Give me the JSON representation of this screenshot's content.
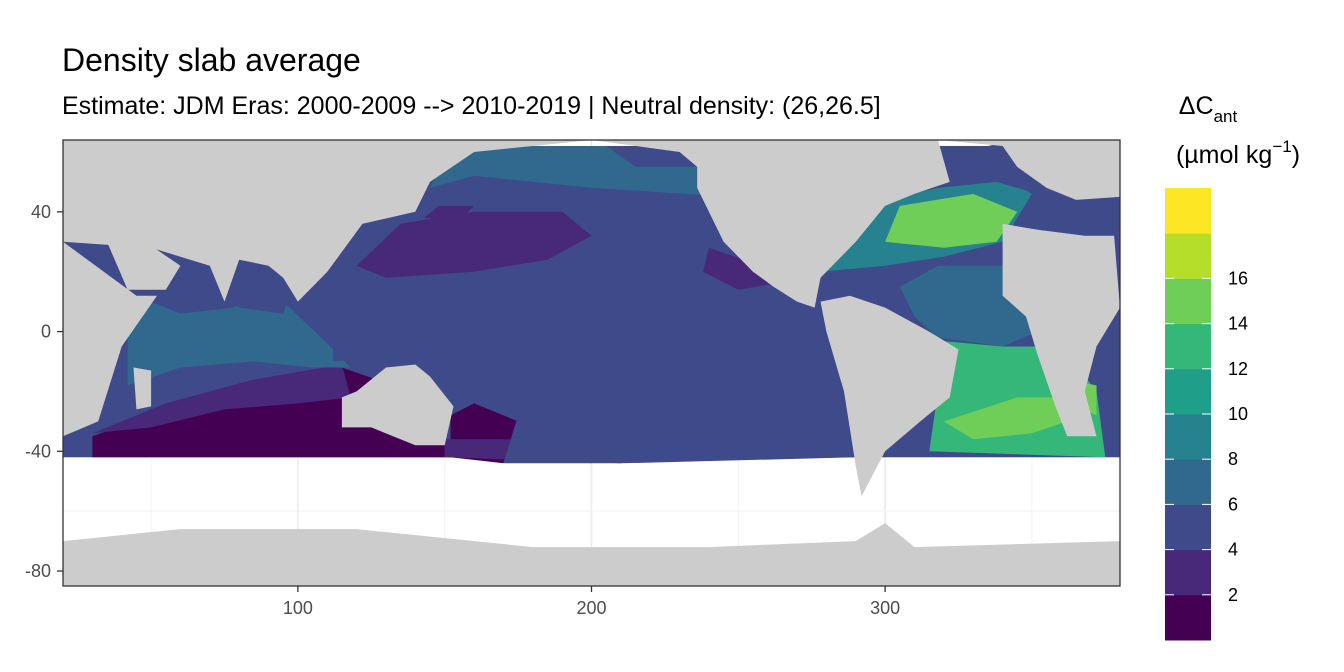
{
  "chart_data": {
    "type": "heatmap",
    "title": "Density slab average",
    "subtitle": "Estimate: JDM Eras: 2000-2009 --> 2010-2019 | Neutral density: (26,26.5]",
    "xlim": [
      20,
      380
    ],
    "ylim": [
      -85,
      64
    ],
    "x_ticks": [
      100,
      200,
      300
    ],
    "y_ticks": [
      40,
      0,
      -40,
      -80
    ],
    "x_tick_labels": [
      "100",
      "200",
      "300"
    ],
    "y_tick_labels": [
      "40",
      "0",
      "-40",
      "-80"
    ],
    "grid": true,
    "legend": {
      "position": "right",
      "title_main": "ΔC",
      "title_sub": "ant",
      "units_prefix": "(µmol kg",
      "units_sup": "−1",
      "units_suffix": ")",
      "tick_labels": [
        "2",
        "4",
        "6",
        "8",
        "10",
        "12",
        "14",
        "16"
      ],
      "breaks": [
        0,
        2,
        4,
        6,
        8,
        10,
        12,
        14,
        16,
        18
      ],
      "colors": [
        "#440154",
        "#482878",
        "#3e4a89",
        "#31688e",
        "#26828e",
        "#1f9e89",
        "#35b779",
        "#6ece58",
        "#b5de2b",
        "#fde725"
      ]
    },
    "regions": [
      {
        "name": "southern indian low",
        "value": 1,
        "poly": [
          [
            30,
            -42
          ],
          [
            150,
            -42
          ],
          [
            150,
            -24
          ],
          [
            115,
            -12
          ],
          [
            80,
            -18
          ],
          [
            50,
            -28
          ],
          [
            30,
            -35
          ]
        ]
      },
      {
        "name": "south indian",
        "value": 3,
        "poly": [
          [
            30,
            -34
          ],
          [
            55,
            -24
          ],
          [
            85,
            -16
          ],
          [
            115,
            -11
          ],
          [
            118,
            -22
          ],
          [
            100,
            -24
          ],
          [
            75,
            -26
          ],
          [
            50,
            -32
          ]
        ]
      },
      {
        "name": "mid indian",
        "value": 7,
        "poly": [
          [
            42,
            -18
          ],
          [
            42,
            6
          ],
          [
            52,
            10
          ],
          [
            75,
            8
          ],
          [
            95,
            10
          ],
          [
            110,
            -4
          ],
          [
            118,
            -12
          ],
          [
            105,
            -12
          ],
          [
            85,
            -10
          ],
          [
            60,
            -12
          ]
        ]
      },
      {
        "name": "arabian sea",
        "value": 5,
        "poly": [
          [
            45,
            12
          ],
          [
            55,
            24
          ],
          [
            65,
            25
          ],
          [
            75,
            12
          ],
          [
            78,
            8
          ],
          [
            60,
            6
          ]
        ]
      },
      {
        "name": "bay of bengal",
        "value": 4,
        "poly": [
          [
            80,
            8
          ],
          [
            82,
            20
          ],
          [
            92,
            22
          ],
          [
            98,
            14
          ],
          [
            95,
            6
          ]
        ]
      },
      {
        "name": "tasman",
        "value": 1,
        "poly": [
          [
            152,
            -42
          ],
          [
            170,
            -44
          ],
          [
            175,
            -30
          ],
          [
            160,
            -24
          ],
          [
            152,
            -28
          ]
        ]
      },
      {
        "name": "s pacific band",
        "value": 2,
        "poly": [
          [
            150,
            -42
          ],
          [
            210,
            -44
          ],
          [
            210,
            -38
          ],
          [
            180,
            -36
          ],
          [
            150,
            -36
          ]
        ]
      },
      {
        "name": "pacific main",
        "value": 5,
        "poly": [
          [
            112,
            -10
          ],
          [
            112,
            35
          ],
          [
            145,
            48
          ],
          [
            160,
            55
          ],
          [
            200,
            58
          ],
          [
            235,
            58
          ],
          [
            250,
            40
          ],
          [
            255,
            22
          ],
          [
            268,
            12
          ],
          [
            280,
            0
          ],
          [
            285,
            -20
          ],
          [
            290,
            -42
          ],
          [
            210,
            -44
          ],
          [
            170,
            -44
          ],
          [
            175,
            -28
          ],
          [
            160,
            -18
          ],
          [
            140,
            -8
          ]
        ]
      },
      {
        "name": "subpolar n pacific",
        "value": 7,
        "poly": [
          [
            145,
            48
          ],
          [
            150,
            58
          ],
          [
            160,
            62
          ],
          [
            205,
            62
          ],
          [
            215,
            55
          ],
          [
            240,
            55
          ],
          [
            248,
            45
          ],
          [
            200,
            48
          ],
          [
            160,
            52
          ]
        ]
      },
      {
        "name": "subtropical gyre low",
        "value": 3,
        "poly": [
          [
            120,
            22
          ],
          [
            135,
            36
          ],
          [
            160,
            40
          ],
          [
            190,
            40
          ],
          [
            200,
            32
          ],
          [
            185,
            24
          ],
          [
            160,
            20
          ],
          [
            130,
            18
          ]
        ]
      },
      {
        "name": "kuroshio low",
        "value": 2,
        "poly": [
          [
            143,
            38
          ],
          [
            148,
            42
          ],
          [
            160,
            42
          ],
          [
            155,
            37
          ]
        ]
      },
      {
        "name": "east pacific low",
        "value": 3,
        "poly": [
          [
            240,
            28
          ],
          [
            258,
            22
          ],
          [
            262,
            16
          ],
          [
            250,
            14
          ],
          [
            238,
            20
          ]
        ]
      },
      {
        "name": "atlantic nw",
        "value": 9,
        "poly": [
          [
            278,
            20
          ],
          [
            285,
            38
          ],
          [
            300,
            44
          ],
          [
            318,
            48
          ],
          [
            340,
            52
          ],
          [
            350,
            46
          ],
          [
            340,
            30
          ],
          [
            320,
            25
          ],
          [
            300,
            22
          ]
        ]
      },
      {
        "name": "atlantic gyre",
        "value": 15,
        "poly": [
          [
            300,
            30
          ],
          [
            305,
            42
          ],
          [
            330,
            46
          ],
          [
            345,
            40
          ],
          [
            338,
            30
          ],
          [
            320,
            28
          ]
        ]
      },
      {
        "name": "north atlantic high lat",
        "value": 5,
        "poly": [
          [
            318,
            48
          ],
          [
            325,
            60
          ],
          [
            345,
            64
          ],
          [
            365,
            60
          ],
          [
            365,
            50
          ],
          [
            352,
            46
          ],
          [
            338,
            50
          ]
        ]
      },
      {
        "name": "eastern atlantic subtropics",
        "value": 5,
        "poly": [
          [
            340,
            10
          ],
          [
            340,
            30
          ],
          [
            350,
            32
          ],
          [
            352,
            20
          ],
          [
            345,
            10
          ]
        ]
      },
      {
        "name": "tropical atlantic",
        "value": 7,
        "poly": [
          [
            305,
            15
          ],
          [
            318,
            22
          ],
          [
            340,
            22
          ],
          [
            345,
            10
          ],
          [
            352,
            0
          ],
          [
            340,
            -5
          ],
          [
            318,
            -2
          ],
          [
            310,
            5
          ]
        ]
      },
      {
        "name": "s atlantic",
        "value": 12,
        "poly": [
          [
            315,
            -40
          ],
          [
            375,
            -42
          ],
          [
            372,
            -20
          ],
          [
            360,
            -5
          ],
          [
            340,
            -5
          ],
          [
            318,
            -3
          ],
          [
            318,
            -20
          ]
        ]
      },
      {
        "name": "s atlantic high",
        "value": 14,
        "poly": [
          [
            320,
            -30
          ],
          [
            330,
            -36
          ],
          [
            350,
            -34
          ],
          [
            368,
            -28
          ],
          [
            368,
            -22
          ],
          [
            345,
            -22
          ]
        ]
      },
      {
        "name": "benguela",
        "value": 15,
        "poly": [
          [
            358,
            -22
          ],
          [
            372,
            -28
          ],
          [
            372,
            -18
          ],
          [
            362,
            -16
          ]
        ]
      }
    ],
    "land": [
      {
        "name": "africa",
        "poly": [
          [
            340,
            36
          ],
          [
            352,
            34
          ],
          [
            368,
            32
          ],
          [
            378,
            32
          ],
          [
            380,
            8
          ],
          [
            372,
            -5
          ],
          [
            368,
            -20
          ],
          [
            372,
            -35
          ],
          [
            362,
            -35
          ],
          [
            358,
            -25
          ],
          [
            352,
            -8
          ],
          [
            348,
            5
          ],
          [
            340,
            12
          ]
        ]
      },
      {
        "name": "africa east",
        "poly": [
          [
            20,
            30
          ],
          [
            45,
            12
          ],
          [
            52,
            12
          ],
          [
            40,
            -5
          ],
          [
            32,
            -30
          ],
          [
            20,
            -35
          ]
        ]
      },
      {
        "name": "arabia",
        "poly": [
          [
            35,
            30
          ],
          [
            48,
            30
          ],
          [
            60,
            22
          ],
          [
            55,
            14
          ],
          [
            42,
            14
          ]
        ]
      },
      {
        "name": "eurasia",
        "poly": [
          [
            20,
            64
          ],
          [
            380,
            64
          ],
          [
            380,
            45
          ],
          [
            365,
            44
          ],
          [
            355,
            48
          ],
          [
            345,
            55
          ],
          [
            340,
            62
          ],
          [
            318,
            64
          ],
          [
            300,
            64
          ],
          [
            290,
            60
          ],
          [
            282,
            64
          ],
          [
            200,
            64
          ],
          [
            160,
            60
          ],
          [
            145,
            50
          ],
          [
            140,
            40
          ],
          [
            122,
            36
          ],
          [
            110,
            20
          ],
          [
            100,
            10
          ],
          [
            95,
            18
          ],
          [
            90,
            22
          ],
          [
            80,
            24
          ],
          [
            75,
            10
          ],
          [
            70,
            22
          ],
          [
            60,
            25
          ],
          [
            50,
            28
          ],
          [
            20,
            30
          ]
        ]
      },
      {
        "name": "north america",
        "poly": [
          [
            200,
            64
          ],
          [
            230,
            60
          ],
          [
            236,
            55
          ],
          [
            236,
            48
          ],
          [
            245,
            30
          ],
          [
            255,
            20
          ],
          [
            262,
            15
          ],
          [
            270,
            10
          ],
          [
            276,
            8
          ],
          [
            278,
            18
          ],
          [
            290,
            30
          ],
          [
            300,
            42
          ],
          [
            310,
            46
          ],
          [
            322,
            50
          ],
          [
            318,
            64
          ]
        ]
      },
      {
        "name": "south america",
        "poly": [
          [
            278,
            10
          ],
          [
            288,
            12
          ],
          [
            300,
            8
          ],
          [
            315,
            0
          ],
          [
            325,
            -6
          ],
          [
            322,
            -22
          ],
          [
            312,
            -30
          ],
          [
            300,
            -40
          ],
          [
            292,
            -55
          ],
          [
            290,
            -45
          ],
          [
            286,
            -20
          ],
          [
            280,
            0
          ]
        ]
      },
      {
        "name": "australia",
        "poly": [
          [
            115,
            -22
          ],
          [
            120,
            -20
          ],
          [
            130,
            -12
          ],
          [
            140,
            -11
          ],
          [
            145,
            -15
          ],
          [
            153,
            -25
          ],
          [
            150,
            -38
          ],
          [
            140,
            -38
          ],
          [
            125,
            -32
          ],
          [
            115,
            -32
          ]
        ]
      },
      {
        "name": "madagascar",
        "poly": [
          [
            44,
            -12
          ],
          [
            50,
            -13
          ],
          [
            50,
            -25
          ],
          [
            45,
            -26
          ]
        ]
      },
      {
        "name": "antarctica",
        "poly": [
          [
            20,
            -70
          ],
          [
            60,
            -66
          ],
          [
            120,
            -66
          ],
          [
            180,
            -72
          ],
          [
            240,
            -72
          ],
          [
            290,
            -70
          ],
          [
            300,
            -64
          ],
          [
            310,
            -72
          ],
          [
            380,
            -70
          ],
          [
            380,
            -85
          ],
          [
            20,
            -85
          ]
        ]
      }
    ]
  }
}
